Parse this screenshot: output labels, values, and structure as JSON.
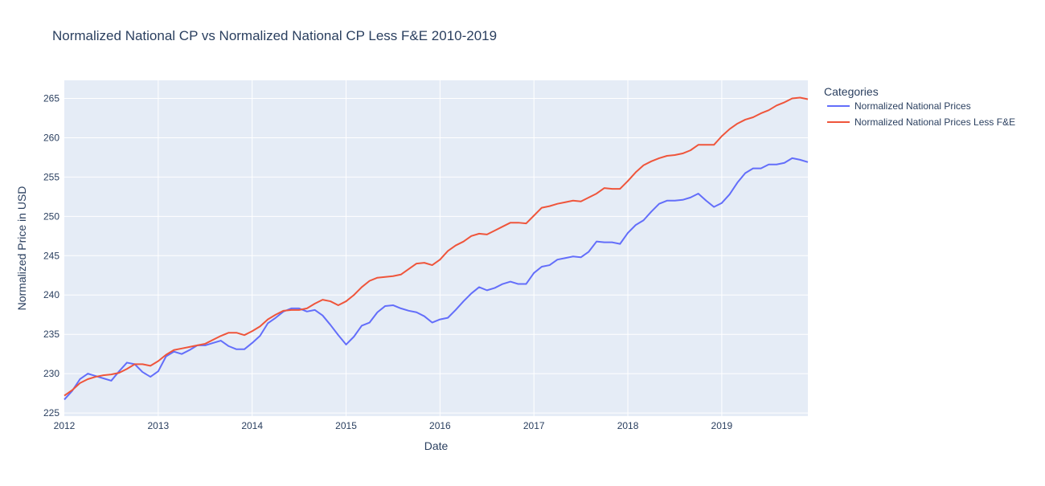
{
  "chart_data": {
    "type": "line",
    "title": "Normalized National CP vs Normalized National CP Less F&E 2010-2019",
    "xlabel": "Date",
    "ylabel": "Normalized Price in USD",
    "x_tick_labels": [
      "2012",
      "2013",
      "2014",
      "2015",
      "2016",
      "2017",
      "2018",
      "2019"
    ],
    "y_ticks": [
      225,
      230,
      235,
      240,
      245,
      250,
      255,
      260,
      265
    ],
    "xlim": [
      "2012-01",
      "2019-12"
    ],
    "ylim": [
      224.6,
      267.3
    ],
    "grid": true,
    "legend": {
      "title": "Categories",
      "position": "right"
    },
    "series": [
      {
        "name": "Normalized National Prices",
        "color": "#636efa",
        "points": [
          [
            "2012-01",
            226.7
          ],
          [
            "2012-02",
            227.8
          ],
          [
            "2012-03",
            229.3
          ],
          [
            "2012-04",
            230.0
          ],
          [
            "2012-05",
            229.7
          ],
          [
            "2012-06",
            229.4
          ],
          [
            "2012-07",
            229.1
          ],
          [
            "2012-08",
            230.3
          ],
          [
            "2012-09",
            231.4
          ],
          [
            "2012-10",
            231.2
          ],
          [
            "2012-11",
            230.2
          ],
          [
            "2012-12",
            229.6
          ],
          [
            "2013-01",
            230.3
          ],
          [
            "2013-02",
            232.2
          ],
          [
            "2013-03",
            232.8
          ],
          [
            "2013-04",
            232.5
          ],
          [
            "2013-05",
            233.0
          ],
          [
            "2013-06",
            233.6
          ],
          [
            "2013-07",
            233.6
          ],
          [
            "2013-08",
            233.9
          ],
          [
            "2013-09",
            234.2
          ],
          [
            "2013-10",
            233.5
          ],
          [
            "2013-11",
            233.1
          ],
          [
            "2013-12",
            233.1
          ],
          [
            "2014-01",
            233.9
          ],
          [
            "2014-02",
            234.8
          ],
          [
            "2014-03",
            236.4
          ],
          [
            "2014-04",
            237.1
          ],
          [
            "2014-05",
            237.9
          ],
          [
            "2014-06",
            238.3
          ],
          [
            "2014-07",
            238.3
          ],
          [
            "2014-08",
            237.9
          ],
          [
            "2014-09",
            238.1
          ],
          [
            "2014-10",
            237.4
          ],
          [
            "2014-11",
            236.2
          ],
          [
            "2014-12",
            234.9
          ],
          [
            "2015-01",
            233.7
          ],
          [
            "2015-02",
            234.7
          ],
          [
            "2015-03",
            236.1
          ],
          [
            "2015-04",
            236.5
          ],
          [
            "2015-05",
            237.8
          ],
          [
            "2015-06",
            238.6
          ],
          [
            "2015-07",
            238.7
          ],
          [
            "2015-08",
            238.3
          ],
          [
            "2015-09",
            238.0
          ],
          [
            "2015-10",
            237.8
          ],
          [
            "2015-11",
            237.3
          ],
          [
            "2015-12",
            236.5
          ],
          [
            "2016-01",
            236.9
          ],
          [
            "2016-02",
            237.1
          ],
          [
            "2016-03",
            238.1
          ],
          [
            "2016-04",
            239.2
          ],
          [
            "2016-05",
            240.2
          ],
          [
            "2016-06",
            241.0
          ],
          [
            "2016-07",
            240.6
          ],
          [
            "2016-08",
            240.9
          ],
          [
            "2016-09",
            241.4
          ],
          [
            "2016-10",
            241.7
          ],
          [
            "2016-11",
            241.4
          ],
          [
            "2016-12",
            241.4
          ],
          [
            "2017-01",
            242.8
          ],
          [
            "2017-02",
            243.6
          ],
          [
            "2017-03",
            243.8
          ],
          [
            "2017-04",
            244.5
          ],
          [
            "2017-05",
            244.7
          ],
          [
            "2017-06",
            244.9
          ],
          [
            "2017-07",
            244.8
          ],
          [
            "2017-08",
            245.5
          ],
          [
            "2017-09",
            246.8
          ],
          [
            "2017-10",
            246.7
          ],
          [
            "2017-11",
            246.7
          ],
          [
            "2017-12",
            246.5
          ],
          [
            "2018-01",
            247.9
          ],
          [
            "2018-02",
            248.9
          ],
          [
            "2018-03",
            249.5
          ],
          [
            "2018-04",
            250.6
          ],
          [
            "2018-05",
            251.6
          ],
          [
            "2018-06",
            252.0
          ],
          [
            "2018-07",
            252.0
          ],
          [
            "2018-08",
            252.1
          ],
          [
            "2018-09",
            252.4
          ],
          [
            "2018-10",
            252.9
          ],
          [
            "2018-11",
            252.0
          ],
          [
            "2018-12",
            251.2
          ],
          [
            "2019-01",
            251.7
          ],
          [
            "2019-02",
            252.8
          ],
          [
            "2019-03",
            254.3
          ],
          [
            "2019-04",
            255.5
          ],
          [
            "2019-05",
            256.1
          ],
          [
            "2019-06",
            256.1
          ],
          [
            "2019-07",
            256.6
          ],
          [
            "2019-08",
            256.6
          ],
          [
            "2019-09",
            256.8
          ],
          [
            "2019-10",
            257.4
          ],
          [
            "2019-11",
            257.2
          ],
          [
            "2019-12",
            256.9
          ]
        ]
      },
      {
        "name": "Normalized National Prices Less F&E",
        "color": "#ef553b",
        "points": [
          [
            "2012-01",
            227.2
          ],
          [
            "2012-02",
            227.9
          ],
          [
            "2012-03",
            228.8
          ],
          [
            "2012-04",
            229.3
          ],
          [
            "2012-05",
            229.6
          ],
          [
            "2012-06",
            229.8
          ],
          [
            "2012-07",
            229.9
          ],
          [
            "2012-08",
            230.1
          ],
          [
            "2012-09",
            230.6
          ],
          [
            "2012-10",
            231.2
          ],
          [
            "2012-11",
            231.2
          ],
          [
            "2012-12",
            231.0
          ],
          [
            "2013-01",
            231.6
          ],
          [
            "2013-02",
            232.4
          ],
          [
            "2013-03",
            233.0
          ],
          [
            "2013-04",
            233.2
          ],
          [
            "2013-05",
            233.4
          ],
          [
            "2013-06",
            233.6
          ],
          [
            "2013-07",
            233.8
          ],
          [
            "2013-08",
            234.3
          ],
          [
            "2013-09",
            234.8
          ],
          [
            "2013-10",
            235.2
          ],
          [
            "2013-11",
            235.2
          ],
          [
            "2013-12",
            234.9
          ],
          [
            "2014-01",
            235.4
          ],
          [
            "2014-02",
            236.0
          ],
          [
            "2014-03",
            236.9
          ],
          [
            "2014-04",
            237.5
          ],
          [
            "2014-05",
            238.0
          ],
          [
            "2014-06",
            238.1
          ],
          [
            "2014-07",
            238.1
          ],
          [
            "2014-08",
            238.3
          ],
          [
            "2014-09",
            238.9
          ],
          [
            "2014-10",
            239.4
          ],
          [
            "2014-11",
            239.2
          ],
          [
            "2014-12",
            238.7
          ],
          [
            "2015-01",
            239.2
          ],
          [
            "2015-02",
            240.0
          ],
          [
            "2015-03",
            241.0
          ],
          [
            "2015-04",
            241.8
          ],
          [
            "2015-05",
            242.2
          ],
          [
            "2015-06",
            242.3
          ],
          [
            "2015-07",
            242.4
          ],
          [
            "2015-08",
            242.6
          ],
          [
            "2015-09",
            243.3
          ],
          [
            "2015-10",
            244.0
          ],
          [
            "2015-11",
            244.1
          ],
          [
            "2015-12",
            243.8
          ],
          [
            "2016-01",
            244.5
          ],
          [
            "2016-02",
            245.6
          ],
          [
            "2016-03",
            246.3
          ],
          [
            "2016-04",
            246.8
          ],
          [
            "2016-05",
            247.5
          ],
          [
            "2016-06",
            247.8
          ],
          [
            "2016-07",
            247.7
          ],
          [
            "2016-08",
            248.2
          ],
          [
            "2016-09",
            248.7
          ],
          [
            "2016-10",
            249.2
          ],
          [
            "2016-11",
            249.2
          ],
          [
            "2016-12",
            249.1
          ],
          [
            "2017-01",
            250.1
          ],
          [
            "2017-02",
            251.1
          ],
          [
            "2017-03",
            251.3
          ],
          [
            "2017-04",
            251.6
          ],
          [
            "2017-05",
            251.8
          ],
          [
            "2017-06",
            252.0
          ],
          [
            "2017-07",
            251.9
          ],
          [
            "2017-08",
            252.4
          ],
          [
            "2017-09",
            252.9
          ],
          [
            "2017-10",
            253.6
          ],
          [
            "2017-11",
            253.5
          ],
          [
            "2017-12",
            253.5
          ],
          [
            "2018-01",
            254.5
          ],
          [
            "2018-02",
            255.6
          ],
          [
            "2018-03",
            256.5
          ],
          [
            "2018-04",
            257.0
          ],
          [
            "2018-05",
            257.4
          ],
          [
            "2018-06",
            257.7
          ],
          [
            "2018-07",
            257.8
          ],
          [
            "2018-08",
            258.0
          ],
          [
            "2018-09",
            258.4
          ],
          [
            "2018-10",
            259.1
          ],
          [
            "2018-11",
            259.1
          ],
          [
            "2018-12",
            259.1
          ],
          [
            "2019-01",
            260.2
          ],
          [
            "2019-02",
            261.1
          ],
          [
            "2019-03",
            261.8
          ],
          [
            "2019-04",
            262.3
          ],
          [
            "2019-05",
            262.6
          ],
          [
            "2019-06",
            263.1
          ],
          [
            "2019-07",
            263.5
          ],
          [
            "2019-08",
            264.1
          ],
          [
            "2019-09",
            264.5
          ],
          [
            "2019-10",
            265.0
          ],
          [
            "2019-11",
            265.1
          ],
          [
            "2019-12",
            264.9
          ]
        ]
      }
    ]
  }
}
